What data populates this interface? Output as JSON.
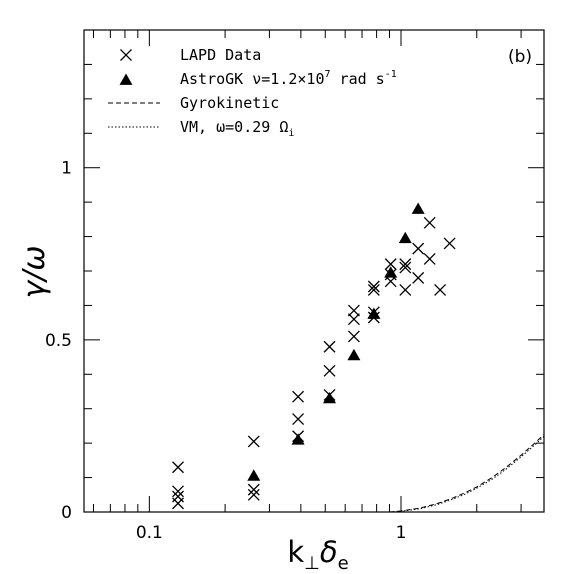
{
  "chart_data": {
    "type": "scatter",
    "panel_label": "(b)",
    "xlabel": {
      "base": "k",
      "sub1": "⊥",
      "mid": "δ",
      "sub2": "e"
    },
    "ylabel": "γ/ω",
    "x_scale": "log",
    "xlim": [
      0.055,
      3.7
    ],
    "ylim": [
      0,
      1.4
    ],
    "x_ticks": [
      {
        "value": 0.1,
        "label": "0.1"
      },
      {
        "value": 1,
        "label": "1"
      }
    ],
    "y_ticks": [
      {
        "value": 0,
        "label": "0"
      },
      {
        "value": 0.5,
        "label": "0.5"
      },
      {
        "value": 1,
        "label": "1"
      }
    ],
    "legend_position": "top-left",
    "legend": [
      {
        "marker": "cross",
        "text": "LAPD Data"
      },
      {
        "marker": "triangle",
        "text": "AstroGK ν=1.2×10",
        "sup": "7",
        "tail": " rad s",
        "sup2": "-1"
      },
      {
        "marker": "dashed",
        "text": "Gyrokinetic"
      },
      {
        "marker": "dotted",
        "text": "VM, ω=0.29 Ω",
        "sub": "i"
      }
    ],
    "series": [
      {
        "name": "LAPD Data",
        "marker": "cross",
        "points": [
          [
            0.13,
            0.13
          ],
          [
            0.13,
            0.06
          ],
          [
            0.13,
            0.045
          ],
          [
            0.13,
            0.025
          ],
          [
            0.26,
            0.205
          ],
          [
            0.26,
            0.065
          ],
          [
            0.26,
            0.05
          ],
          [
            0.39,
            0.335
          ],
          [
            0.39,
            0.27
          ],
          [
            0.39,
            0.22
          ],
          [
            0.52,
            0.48
          ],
          [
            0.52,
            0.41
          ],
          [
            0.52,
            0.34
          ],
          [
            0.65,
            0.585
          ],
          [
            0.65,
            0.56
          ],
          [
            0.65,
            0.51
          ],
          [
            0.78,
            0.655
          ],
          [
            0.78,
            0.645
          ],
          [
            0.78,
            0.58
          ],
          [
            0.78,
            0.565
          ],
          [
            0.91,
            0.72
          ],
          [
            0.91,
            0.69
          ],
          [
            0.91,
            0.67
          ],
          [
            1.04,
            0.72
          ],
          [
            1.04,
            0.71
          ],
          [
            1.04,
            0.645
          ],
          [
            1.17,
            0.765
          ],
          [
            1.17,
            0.68
          ],
          [
            1.3,
            0.84
          ],
          [
            1.3,
            0.735
          ],
          [
            1.43,
            0.645
          ],
          [
            1.56,
            0.78
          ]
        ]
      },
      {
        "name": "AstroGK ν=1.2×10⁷ rad s⁻¹",
        "marker": "triangle",
        "points": [
          [
            0.26,
            0.105
          ],
          [
            0.39,
            0.21
          ],
          [
            0.52,
            0.33
          ],
          [
            0.65,
            0.455
          ],
          [
            0.78,
            0.575
          ],
          [
            0.91,
            0.695
          ],
          [
            1.04,
            0.795
          ],
          [
            1.17,
            0.88
          ]
        ]
      },
      {
        "name": "Gyrokinetic",
        "marker": "dashed",
        "points": [
          [
            0.9,
            0.0
          ],
          [
            1.0,
            0.003
          ],
          [
            1.2,
            0.012
          ],
          [
            1.4,
            0.025
          ],
          [
            1.6,
            0.04
          ],
          [
            1.8,
            0.056
          ],
          [
            2.0,
            0.073
          ],
          [
            2.3,
            0.1
          ],
          [
            2.6,
            0.128
          ],
          [
            3.0,
            0.165
          ],
          [
            3.4,
            0.2
          ],
          [
            3.7,
            0.225
          ]
        ]
      },
      {
        "name": "VM, ω=0.29 Ωi",
        "marker": "dotted",
        "points": [
          [
            0.9,
            0.0
          ],
          [
            1.0,
            0.002
          ],
          [
            1.2,
            0.01
          ],
          [
            1.4,
            0.022
          ],
          [
            1.6,
            0.037
          ],
          [
            1.8,
            0.052
          ],
          [
            2.0,
            0.069
          ],
          [
            2.3,
            0.095
          ],
          [
            2.6,
            0.123
          ],
          [
            3.0,
            0.16
          ],
          [
            3.4,
            0.195
          ],
          [
            3.7,
            0.22
          ]
        ]
      }
    ]
  }
}
